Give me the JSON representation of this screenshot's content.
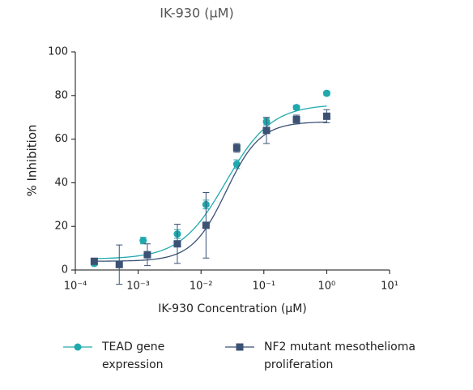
{
  "chart_data": {
    "type": "dose-response",
    "title": "IK-930 (µM)",
    "xlabel": "IK-930 Concentration (µM)",
    "ylabel": "% Inhibition",
    "xscale": "log",
    "xlim": [
      0.0001,
      10
    ],
    "ylim": [
      0,
      100
    ],
    "xticks": [
      {
        "value": 0.0001,
        "label": "10⁻⁴"
      },
      {
        "value": 0.001,
        "label": "10⁻³"
      },
      {
        "value": 0.01,
        "label": "10⁻²"
      },
      {
        "value": 0.1,
        "label": "10⁻¹"
      },
      {
        "value": 1,
        "label": "10⁰"
      },
      {
        "value": 10,
        "label": "10¹"
      }
    ],
    "yticks": [
      0,
      20,
      40,
      60,
      80,
      100
    ],
    "series": [
      {
        "name": "TEAD gene expression",
        "color": "#20a9ad",
        "marker": "circle",
        "x": [
          0.0002,
          0.0012,
          0.0042,
          0.012,
          0.037,
          0.11,
          0.33,
          1.0
        ],
        "values": [
          3,
          13.5,
          16.5,
          30,
          48.5,
          68,
          74.5,
          81
        ],
        "errors": [
          1,
          1.5,
          2,
          2,
          2,
          1.5,
          1,
          1
        ],
        "fit": {
          "bottom": 5,
          "top": 76,
          "ec50": 0.025,
          "hill": 1.2
        }
      },
      {
        "name": "NF2 mutant mesothelioma proliferation",
        "color": "#3b5275",
        "marker": "square",
        "x": [
          0.0002,
          0.0005,
          0.0014,
          0.0042,
          0.012,
          0.037,
          0.11,
          0.33,
          1.0
        ],
        "values": [
          4,
          2.5,
          7,
          12,
          20.5,
          56,
          64,
          69,
          70.5
        ],
        "errors": [
          1,
          9,
          5,
          9,
          15,
          2,
          6,
          2,
          3
        ],
        "fit": {
          "bottom": 4,
          "top": 68,
          "ec50": 0.025,
          "hill": 1.6
        }
      }
    ]
  }
}
